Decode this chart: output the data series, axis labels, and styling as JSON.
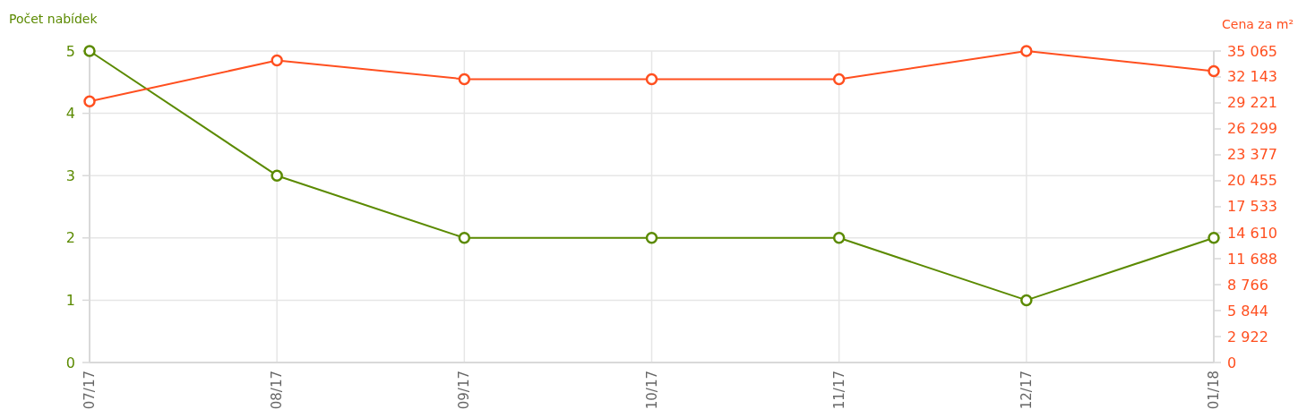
{
  "chart_data": {
    "type": "line",
    "categories": [
      "07/17",
      "08/17",
      "09/17",
      "10/17",
      "11/17",
      "12/17",
      "01/18"
    ],
    "ylabel": "Počet nabídek",
    "y2label": "Cena za m²",
    "ylim": [
      0,
      5
    ],
    "yticks": [
      0,
      1,
      2,
      3,
      4,
      5
    ],
    "y2lim": [
      0,
      35065
    ],
    "y2ticks": [
      0,
      {
        "value": 2922,
        "label": "2 922"
      },
      {
        "value": 5844,
        "label": "5 844"
      },
      {
        "value": 8766,
        "label": "8 766"
      },
      {
        "value": 11688,
        "label": "11 688"
      },
      {
        "value": 14610,
        "label": "14 610"
      },
      {
        "value": 17533,
        "label": "17 533"
      },
      {
        "value": 20455,
        "label": "20 455"
      },
      {
        "value": 23377,
        "label": "23 377"
      },
      {
        "value": 26299,
        "label": "26 299"
      },
      {
        "value": 29221,
        "label": "29 221"
      },
      {
        "value": 32143,
        "label": "32 143"
      },
      {
        "value": 35065,
        "label": "35 065"
      }
    ],
    "grid": true,
    "marker": "circle",
    "series": [
      {
        "color": "#5b8a00",
        "values": [
          5,
          3,
          2,
          2,
          2,
          1,
          2
        ]
      },
      {
        "color": "#ff4f1f",
        "axis": "y2",
        "values": [
          29400,
          34000,
          31900,
          31900,
          31900,
          35065,
          32800
        ]
      }
    ]
  }
}
